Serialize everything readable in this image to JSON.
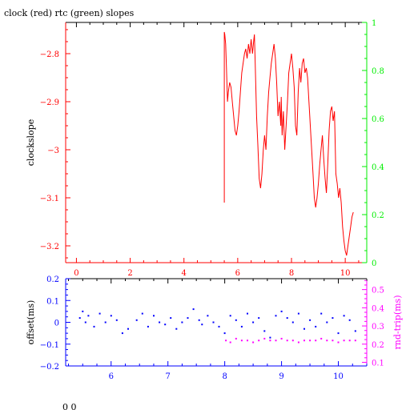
{
  "colors": {
    "red": "#ff0000",
    "green": "#00ee00",
    "blue": "#0000ff",
    "magenta": "#ff00ff",
    "black": "#000000"
  },
  "page": {
    "title": "clock (red) rtc (green) slopes",
    "footer": "0 0"
  },
  "chart_data": [
    {
      "type": "line",
      "title": "clock (red) rtc (green) slopes",
      "xlabel": "",
      "ylabel": "clockslope",
      "y2label": "",
      "xlim": [
        -0.4,
        10.8
      ],
      "ylim": [
        -3.235,
        -2.735
      ],
      "y2lim": [
        0,
        1
      ],
      "xticks": [
        0,
        2,
        4,
        6,
        8,
        10
      ],
      "yticks": [
        -3.2,
        -3.1,
        -3,
        -2.9,
        -2.8
      ],
      "y2ticks": [
        0,
        0.2,
        0.4,
        0.6,
        0.8,
        1
      ],
      "grid": false,
      "series": [
        {
          "name": "clock",
          "color": "#ff0000",
          "axis": "left",
          "x": [
            5.5,
            5.5,
            5.52,
            5.55,
            5.58,
            5.62,
            5.65,
            5.7,
            5.75,
            5.8,
            5.85,
            5.9,
            5.95,
            6.0,
            6.05,
            6.1,
            6.15,
            6.2,
            6.25,
            6.3,
            6.35,
            6.4,
            6.45,
            6.5,
            6.55,
            6.6,
            6.62,
            6.65,
            6.7,
            6.75,
            6.8,
            6.85,
            6.9,
            6.95,
            7.0,
            7.05,
            7.1,
            7.15,
            7.2,
            7.25,
            7.3,
            7.35,
            7.4,
            7.45,
            7.5,
            7.55,
            7.6,
            7.62,
            7.65,
            7.7,
            7.75,
            7.8,
            7.85,
            7.9,
            7.95,
            8.0,
            8.05,
            8.1,
            8.15,
            8.2,
            8.25,
            8.3,
            8.35,
            8.4,
            8.45,
            8.5,
            8.55,
            8.6,
            8.65,
            8.7,
            8.75,
            8.8,
            8.85,
            8.9,
            8.95,
            9.0,
            9.05,
            9.1,
            9.15,
            9.2,
            9.25,
            9.3,
            9.35,
            9.4,
            9.45,
            9.5,
            9.55,
            9.6,
            9.65,
            9.7,
            9.75,
            9.8,
            9.85,
            9.9,
            9.95,
            10.0,
            10.05,
            10.1,
            10.15,
            10.2,
            10.25,
            10.3
          ],
          "values": [
            -3.11,
            -2.755,
            -2.76,
            -2.78,
            -2.83,
            -2.9,
            -2.88,
            -2.86,
            -2.87,
            -2.9,
            -2.93,
            -2.96,
            -2.97,
            -2.95,
            -2.92,
            -2.88,
            -2.84,
            -2.82,
            -2.8,
            -2.79,
            -2.81,
            -2.78,
            -2.8,
            -2.77,
            -2.8,
            -2.77,
            -2.76,
            -2.82,
            -2.93,
            -2.99,
            -3.06,
            -3.08,
            -3.05,
            -3.0,
            -2.97,
            -3.0,
            -2.93,
            -2.88,
            -2.85,
            -2.82,
            -2.8,
            -2.78,
            -2.81,
            -2.86,
            -2.93,
            -2.9,
            -2.95,
            -2.89,
            -2.97,
            -2.92,
            -3.0,
            -2.95,
            -2.9,
            -2.84,
            -2.82,
            -2.8,
            -2.83,
            -2.87,
            -2.95,
            -2.97,
            -2.88,
            -2.83,
            -2.86,
            -2.82,
            -2.81,
            -2.84,
            -2.83,
            -2.85,
            -2.9,
            -2.95,
            -3.0,
            -3.05,
            -3.1,
            -3.12,
            -3.1,
            -3.07,
            -3.03,
            -3.0,
            -2.97,
            -3.02,
            -3.06,
            -3.09,
            -3.03,
            -2.96,
            -2.92,
            -2.91,
            -2.94,
            -2.92,
            -3.05,
            -3.07,
            -3.1,
            -3.08,
            -3.11,
            -3.16,
            -3.19,
            -3.21,
            -3.22,
            -3.2,
            -3.18,
            -3.16,
            -3.14,
            -3.13
          ]
        }
      ]
    },
    {
      "type": "scatter",
      "title": "",
      "xlabel": "",
      "ylabel": "offset(ms)",
      "y2label": "rnd-trip(ms)",
      "xlim": [
        5.2,
        10.5
      ],
      "ylim": [
        -0.2,
        0.2
      ],
      "y2lim": [
        0.08,
        0.56
      ],
      "xticks": [
        6,
        7,
        8,
        9,
        10
      ],
      "yticks": [
        -0.2,
        -0.1,
        0,
        0.1,
        0.2
      ],
      "y2ticks": [
        0.1,
        0.2,
        0.3,
        0.4,
        0.5
      ],
      "grid": false,
      "series": [
        {
          "name": "offset",
          "color": "#0000ff",
          "axis": "left",
          "x": [
            5.45,
            5.5,
            5.55,
            5.6,
            5.7,
            5.8,
            5.9,
            6.0,
            6.1,
            6.2,
            6.3,
            6.45,
            6.55,
            6.65,
            6.75,
            6.85,
            6.95,
            7.05,
            7.15,
            7.25,
            7.35,
            7.45,
            7.55,
            7.6,
            7.7,
            7.8,
            7.9,
            8.0,
            8.1,
            8.2,
            8.3,
            8.4,
            8.5,
            8.6,
            8.7,
            8.8,
            8.9,
            9.0,
            9.1,
            9.2,
            9.3,
            9.4,
            9.5,
            9.6,
            9.7,
            9.8,
            9.9,
            10.0,
            10.1,
            10.2,
            10.3
          ],
          "values": [
            0.02,
            0.05,
            0.0,
            0.03,
            -0.02,
            0.04,
            0.0,
            0.03,
            0.01,
            -0.05,
            -0.03,
            0.01,
            0.04,
            -0.02,
            0.03,
            0.0,
            -0.01,
            0.02,
            -0.03,
            0.0,
            0.02,
            0.06,
            0.01,
            -0.01,
            0.03,
            0.0,
            -0.02,
            -0.05,
            0.03,
            0.01,
            -0.02,
            0.04,
            0.0,
            0.02,
            -0.04,
            -0.07,
            0.03,
            0.05,
            0.02,
            0.0,
            0.04,
            -0.03,
            0.01,
            -0.02,
            0.04,
            0.0,
            0.02,
            -0.05,
            0.03,
            0.01,
            -0.04
          ]
        },
        {
          "name": "rnd-trip",
          "color": "#ff00ff",
          "axis": "right",
          "x": [
            8.02,
            8.1,
            8.2,
            8.3,
            8.4,
            8.5,
            8.6,
            8.7,
            8.8,
            8.9,
            9.0,
            9.1,
            9.2,
            9.3,
            9.4,
            9.5,
            9.6,
            9.7,
            9.8,
            9.9,
            10.0,
            10.1,
            10.2,
            10.3
          ],
          "values": [
            0.22,
            0.21,
            0.23,
            0.22,
            0.22,
            0.21,
            0.22,
            0.23,
            0.22,
            0.22,
            0.23,
            0.22,
            0.22,
            0.21,
            0.22,
            0.22,
            0.22,
            0.23,
            0.22,
            0.22,
            0.21,
            0.22,
            0.22,
            0.22
          ]
        }
      ]
    }
  ]
}
